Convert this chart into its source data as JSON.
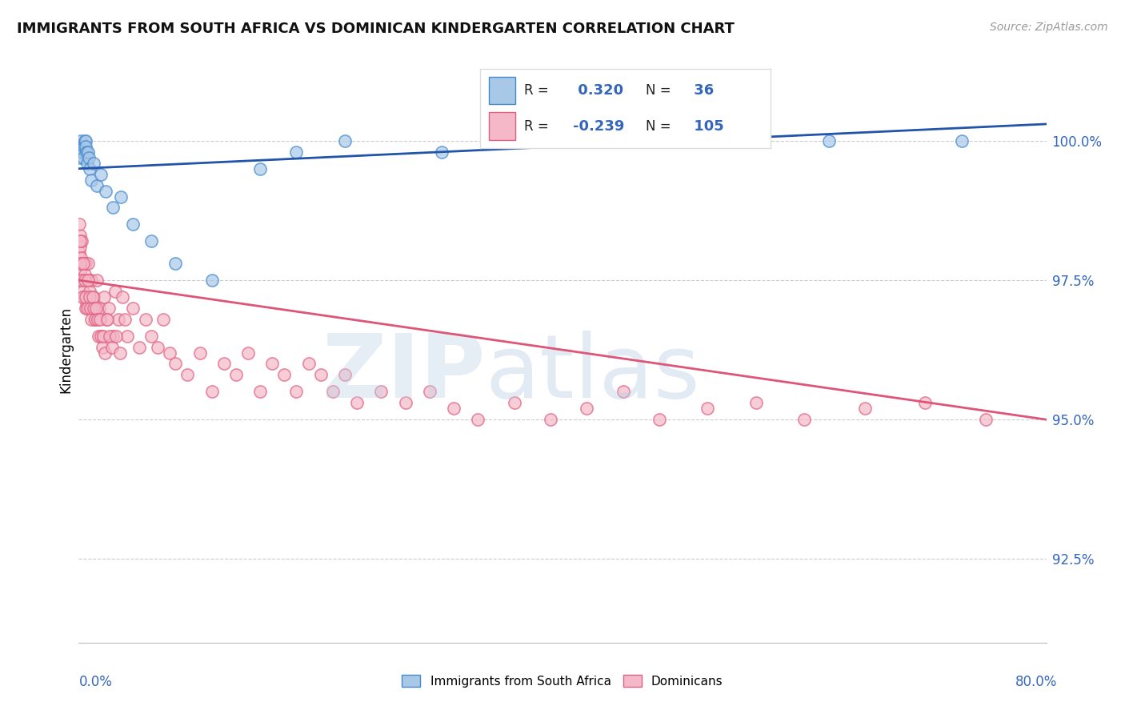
{
  "title": "IMMIGRANTS FROM SOUTH AFRICA VS DOMINICAN KINDERGARTEN CORRELATION CHART",
  "source": "Source: ZipAtlas.com",
  "ylabel": "Kindergarten",
  "ylim": [
    91.0,
    101.5
  ],
  "xlim": [
    0,
    80
  ],
  "yticks_right": [
    92.5,
    95.0,
    97.5,
    100.0
  ],
  "ytick_labels_right": [
    "92.5%",
    "95.0%",
    "97.5%",
    "100.0%"
  ],
  "blue_R": 0.32,
  "blue_N": 36,
  "pink_R": -0.239,
  "pink_N": 105,
  "blue_color": "#a8c8e8",
  "pink_color": "#f4b8c8",
  "blue_edge_color": "#4488cc",
  "pink_edge_color": "#e06080",
  "blue_line_color": "#2255aa",
  "pink_line_color": "#dd5577",
  "legend_label_blue": "Immigrants from South Africa",
  "legend_label_pink": "Dominicans",
  "blue_scatter_x": [
    0.05,
    0.1,
    0.15,
    0.2,
    0.25,
    0.3,
    0.35,
    0.4,
    0.45,
    0.5,
    0.55,
    0.6,
    0.65,
    0.7,
    0.75,
    0.8,
    0.9,
    1.0,
    1.2,
    1.5,
    1.8,
    2.2,
    2.8,
    3.5,
    4.5,
    6.0,
    8.0,
    11.0,
    15.0,
    18.0,
    22.0,
    30.0,
    38.0,
    47.0,
    62.0,
    73.0
  ],
  "blue_scatter_y": [
    99.8,
    99.7,
    99.9,
    100.0,
    99.8,
    99.9,
    99.8,
    99.7,
    99.9,
    100.0,
    100.0,
    99.9,
    99.8,
    99.6,
    99.8,
    99.7,
    99.5,
    99.3,
    99.6,
    99.2,
    99.4,
    99.1,
    98.8,
    99.0,
    98.5,
    98.2,
    97.8,
    97.5,
    99.5,
    99.8,
    100.0,
    99.8,
    100.0,
    100.0,
    100.0,
    100.0
  ],
  "pink_scatter_x": [
    0.05,
    0.08,
    0.1,
    0.12,
    0.15,
    0.18,
    0.2,
    0.25,
    0.3,
    0.35,
    0.4,
    0.45,
    0.5,
    0.55,
    0.6,
    0.65,
    0.7,
    0.75,
    0.8,
    0.85,
    0.9,
    1.0,
    1.1,
    1.2,
    1.3,
    1.5,
    1.7,
    1.9,
    2.1,
    2.3,
    2.5,
    2.8,
    3.0,
    3.3,
    3.6,
    4.0,
    4.5,
    5.0,
    5.5,
    6.0,
    6.5,
    7.0,
    7.5,
    8.0,
    9.0,
    10.0,
    11.0,
    12.0,
    13.0,
    14.0,
    15.0,
    16.0,
    17.0,
    18.0,
    19.0,
    20.0,
    21.0,
    22.0,
    23.0,
    25.0,
    27.0,
    29.0,
    31.0,
    33.0,
    36.0,
    39.0,
    42.0,
    45.0,
    48.0,
    52.0,
    56.0,
    60.0,
    65.0,
    70.0,
    75.0,
    0.06,
    0.09,
    0.13,
    0.22,
    0.28,
    0.38,
    0.48,
    0.58,
    0.68,
    0.78,
    0.88,
    0.95,
    1.05,
    1.15,
    1.25,
    1.35,
    1.45,
    1.55,
    1.65,
    1.75,
    1.85,
    1.95,
    2.05,
    2.15,
    2.35,
    2.55,
    2.75,
    3.1,
    3.4,
    3.8
  ],
  "pink_scatter_y": [
    98.0,
    98.3,
    97.8,
    98.1,
    97.9,
    97.5,
    97.7,
    98.2,
    97.5,
    97.3,
    97.8,
    97.2,
    97.6,
    97.0,
    97.8,
    97.1,
    97.5,
    97.8,
    97.2,
    97.0,
    97.3,
    97.5,
    97.0,
    97.2,
    96.8,
    97.5,
    97.0,
    96.5,
    97.2,
    96.8,
    97.0,
    96.5,
    97.3,
    96.8,
    97.2,
    96.5,
    97.0,
    96.3,
    96.8,
    96.5,
    96.3,
    96.8,
    96.2,
    96.0,
    95.8,
    96.2,
    95.5,
    96.0,
    95.8,
    96.2,
    95.5,
    96.0,
    95.8,
    95.5,
    96.0,
    95.8,
    95.5,
    95.8,
    95.3,
    95.5,
    95.3,
    95.5,
    95.2,
    95.0,
    95.3,
    95.0,
    95.2,
    95.5,
    95.0,
    95.2,
    95.3,
    95.0,
    95.2,
    95.3,
    95.0,
    98.5,
    98.2,
    97.8,
    97.5,
    97.2,
    97.8,
    97.5,
    97.2,
    97.0,
    97.5,
    97.2,
    97.0,
    96.8,
    97.2,
    97.0,
    96.8,
    97.0,
    96.8,
    96.5,
    96.8,
    96.5,
    96.3,
    96.5,
    96.2,
    96.8,
    96.5,
    96.3,
    96.5,
    96.2,
    96.8
  ]
}
